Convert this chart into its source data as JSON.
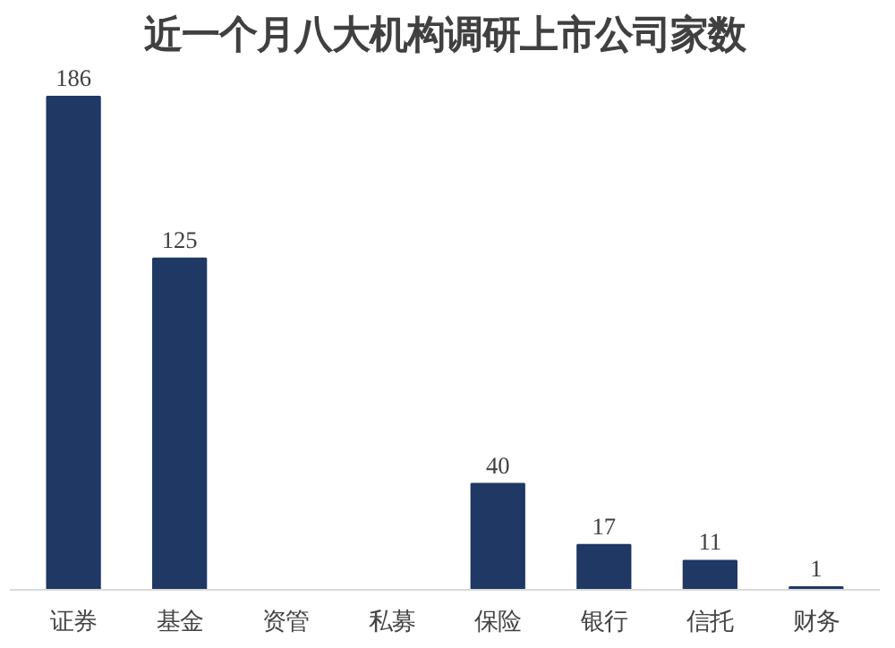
{
  "chart_data": {
    "type": "bar",
    "title": "近一个月八大机构调研上市公司家数",
    "categories": [
      "证券",
      "基金",
      "资管",
      "私募",
      "保险",
      "银行",
      "信托",
      "财务"
    ],
    "values": [
      186,
      125,
      null,
      null,
      40,
      17,
      11,
      1
    ],
    "color": "#1f3864",
    "data_labels": true,
    "tick_labels": "x",
    "grid": false
  }
}
